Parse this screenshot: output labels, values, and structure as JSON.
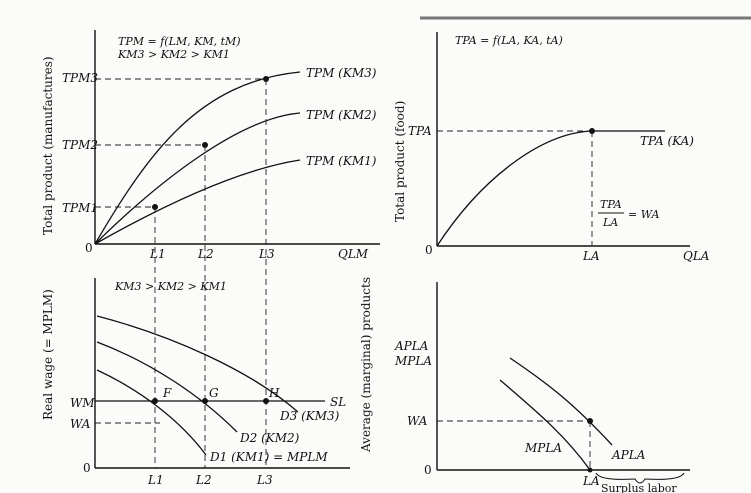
{
  "panels": {
    "top_left": {
      "eq1": "TPM = f(LM, KM, tM)",
      "eq2": "KM3 > KM2 > KM1",
      "ylabel": "Total product (manufactures)",
      "yticks": [
        "TPM3",
        "TPM2",
        "TPM1"
      ],
      "origin": "0",
      "xticks": [
        "L1",
        "L2",
        "L3"
      ],
      "xlabel": "QLM",
      "curves": [
        "TPM (KM3)",
        "TPM (KM2)",
        "TPM (KM1)"
      ]
    },
    "top_right": {
      "eq": "TPA = f(LA, KA, tA)",
      "ylabel": "Total product (food)",
      "ytick": "TPA",
      "curve": "TPA (KA)",
      "frac_num": "TPA",
      "frac_den": "LA",
      "frac_eq": "= WA",
      "origin": "0",
      "xtick": "LA",
      "xlabel": "QLA"
    },
    "bottom_left": {
      "eq": "KM3 > KM2 > KM1",
      "ylabel": "Real wage (= MPLM)",
      "yticks": [
        "WM",
        "WA"
      ],
      "origin": "0",
      "points": [
        "F",
        "G",
        "H"
      ],
      "supply": "SL",
      "curves": [
        "D3 (KM3)",
        "D2 (KM2)",
        "D1 (KM1) = MPLM"
      ],
      "xticks": [
        "L1",
        "L2",
        "L3"
      ]
    },
    "bottom_right": {
      "ylabel": "Average (marginal) products",
      "yticks": [
        "APLA",
        "MPLA",
        "WA"
      ],
      "origin": "0",
      "curves": [
        "MPLA",
        "APLA"
      ],
      "xtick": "LA",
      "note": "Surplus labor"
    }
  }
}
